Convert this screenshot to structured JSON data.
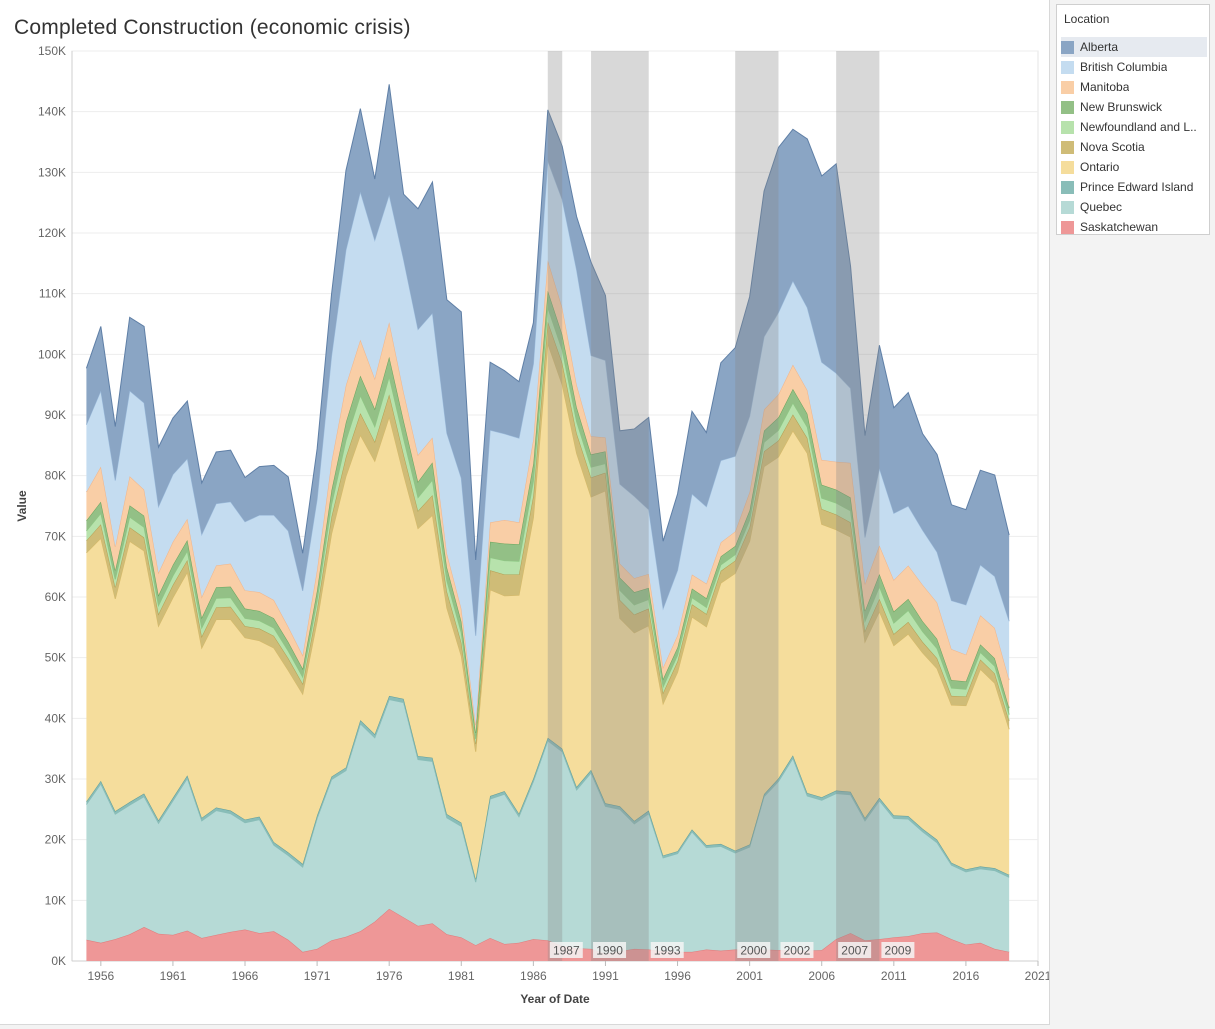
{
  "title": "Completed Construction (economic crisis)",
  "legend": {
    "title": "Location",
    "items": [
      {
        "label": "Alberta",
        "color": "#8aa5c4"
      },
      {
        "label": "British Columbia",
        "color": "#c4dcf0"
      },
      {
        "label": "Manitoba",
        "color": "#f9cea6"
      },
      {
        "label": "New Brunswick",
        "color": "#93c086"
      },
      {
        "label": "Newfoundland and L..",
        "color": "#b7e2ac"
      },
      {
        "label": "Nova Scotia",
        "color": "#cfbc77"
      },
      {
        "label": "Ontario",
        "color": "#f5dd9c"
      },
      {
        "label": "Prince Edward Island",
        "color": "#89bdb8"
      },
      {
        "label": "Quebec",
        "color": "#b6dad6"
      },
      {
        "label": "Saskatchewan",
        "color": "#ee9797"
      }
    ]
  },
  "chart_data": {
    "type": "area",
    "stacked": true,
    "xlabel": "Year of Date",
    "ylabel": "Value",
    "xlim": [
      1954,
      2021
    ],
    "ylim": [
      0,
      150000
    ],
    "x_ticks": [
      1956,
      1961,
      1966,
      1971,
      1976,
      1981,
      1986,
      1991,
      1996,
      2001,
      2006,
      2011,
      2016,
      2021
    ],
    "y_ticks": [
      {
        "value": 0,
        "label": "0K"
      },
      {
        "value": 10000,
        "label": "10K"
      },
      {
        "value": 20000,
        "label": "20K"
      },
      {
        "value": 30000,
        "label": "30K"
      },
      {
        "value": 40000,
        "label": "40K"
      },
      {
        "value": 50000,
        "label": "50K"
      },
      {
        "value": 60000,
        "label": "60K"
      },
      {
        "value": 70000,
        "label": "70K"
      },
      {
        "value": 80000,
        "label": "80K"
      },
      {
        "value": 90000,
        "label": "90K"
      },
      {
        "value": 100000,
        "label": "100K"
      },
      {
        "value": 110000,
        "label": "110K"
      },
      {
        "value": 120000,
        "label": "120K"
      },
      {
        "value": 130000,
        "label": "130K"
      },
      {
        "value": 140000,
        "label": "140K"
      },
      {
        "value": 150000,
        "label": "150K"
      }
    ],
    "grid": true,
    "legend_position": "right",
    "x": [
      1955,
      1956,
      1957,
      1958,
      1959,
      1960,
      1961,
      1962,
      1963,
      1964,
      1965,
      1966,
      1967,
      1968,
      1969,
      1970,
      1971,
      1972,
      1973,
      1974,
      1975,
      1976,
      1977,
      1978,
      1979,
      1980,
      1981,
      1982,
      1983,
      1984,
      1985,
      1986,
      1987,
      1988,
      1989,
      1990,
      1991,
      1992,
      1993,
      1994,
      1995,
      1996,
      1997,
      1998,
      1999,
      2000,
      2001,
      2002,
      2003,
      2004,
      2005,
      2006,
      2007,
      2008,
      2009,
      2010,
      2011,
      2012,
      2013,
      2014,
      2015,
      2016,
      2017,
      2018,
      2019
    ],
    "series": [
      {
        "name": "Saskatchewan",
        "values": [
          3500,
          3000,
          3600,
          4400,
          5600,
          4500,
          4300,
          5000,
          3800,
          4300,
          4800,
          5200,
          4600,
          4900,
          3500,
          1500,
          2000,
          3400,
          4000,
          4900,
          6500,
          8600,
          7200,
          5800,
          6200,
          4400,
          3900,
          2600,
          3800,
          2800,
          3000,
          3600,
          3400,
          2500,
          2100,
          2000,
          1200,
          1600,
          2000,
          1900,
          1600,
          1500,
          1500,
          1900,
          1700,
          1900,
          1800,
          1900,
          1800,
          1800,
          1700,
          1800,
          3600,
          4600,
          3400,
          3600,
          3900,
          4100,
          4600,
          4700,
          3600,
          2700,
          3000,
          2000,
          1500
        ]
      },
      {
        "name": "Quebec",
        "values": [
          22300,
          26200,
          20600,
          21300,
          21500,
          18200,
          22100,
          25100,
          19300,
          20500,
          19500,
          17600,
          18700,
          14200,
          13900,
          14000,
          21500,
          26500,
          27400,
          34200,
          30300,
          34500,
          35400,
          27400,
          26700,
          19200,
          18300,
          10400,
          22900,
          24700,
          20800,
          26000,
          32900,
          32000,
          26100,
          29000,
          24300,
          23400,
          20600,
          22400,
          15400,
          16200,
          19800,
          16800,
          17200,
          15900,
          17000,
          25200,
          27800,
          31600,
          25500,
          24700,
          24000,
          22800,
          19700,
          22800,
          19600,
          19300,
          16700,
          14800,
          12200,
          12000,
          12200,
          12900,
          12300
        ]
      },
      {
        "name": "Prince Edward Island",
        "values": [
          500,
          500,
          500,
          500,
          500,
          500,
          500,
          500,
          500,
          500,
          500,
          500,
          500,
          500,
          500,
          500,
          500,
          500,
          500,
          600,
          600,
          600,
          600,
          600,
          600,
          600,
          600,
          500,
          500,
          500,
          500,
          500,
          500,
          500,
          500,
          500,
          500,
          500,
          500,
          500,
          400,
          400,
          400,
          400,
          400,
          400,
          400,
          400,
          500,
          500,
          500,
          500,
          500,
          500,
          500,
          500,
          500,
          500,
          500,
          500,
          400,
          400,
          400,
          400,
          400
        ]
      },
      {
        "name": "Ontario",
        "values": [
          41000,
          40000,
          35000,
          43000,
          40000,
          32000,
          33000,
          33500,
          28000,
          31000,
          31500,
          30000,
          29000,
          32000,
          30000,
          28000,
          32000,
          40000,
          48000,
          47000,
          45000,
          46000,
          37000,
          37500,
          40000,
          34000,
          27500,
          21000,
          34000,
          32200,
          36000,
          43000,
          65000,
          60000,
          55000,
          45000,
          51500,
          31000,
          31000,
          30500,
          25000,
          29500,
          35000,
          36000,
          43000,
          45700,
          50000,
          54000,
          53000,
          53500,
          56000,
          45000,
          43000,
          42000,
          29000,
          30700,
          28000,
          30000,
          29000,
          28200,
          26000,
          27000,
          32500,
          30500,
          24000
        ]
      },
      {
        "name": "Nova Scotia",
        "values": [
          2000,
          2300,
          1900,
          2300,
          2200,
          2000,
          2100,
          2000,
          1900,
          2000,
          2100,
          1900,
          2000,
          2000,
          2000,
          1700,
          2000,
          2800,
          3200,
          3600,
          3200,
          3700,
          3300,
          2900,
          3300,
          2700,
          2200,
          1300,
          3200,
          3500,
          3400,
          3600,
          3600,
          3600,
          3300,
          3200,
          3000,
          3000,
          3000,
          2800,
          1800,
          1800,
          2100,
          2100,
          2000,
          2100,
          2300,
          2500,
          2700,
          2700,
          2500,
          2500,
          2500,
          2400,
          1800,
          2100,
          1900,
          2000,
          1800,
          1700,
          1500,
          1500,
          1600,
          1600,
          1400
        ]
      },
      {
        "name": "Newfoundland and Labrador",
        "values": [
          1600,
          1800,
          1300,
          1700,
          1700,
          1400,
          1500,
          1500,
          1400,
          1500,
          1500,
          1300,
          1300,
          1300,
          1200,
          1100,
          1400,
          2000,
          2700,
          2900,
          2500,
          2900,
          2600,
          2200,
          2500,
          1800,
          1600,
          800,
          2100,
          2300,
          2200,
          2400,
          2300,
          2100,
          1900,
          1700,
          1500,
          1600,
          1600,
          1500,
          1000,
          1000,
          1100,
          1100,
          1000,
          1000,
          1200,
          1500,
          1700,
          1900,
          1800,
          1800,
          1900,
          1900,
          1600,
          2000,
          1800,
          1900,
          1700,
          1600,
          1300,
          1200,
          1200,
          1200,
          1000
        ]
      },
      {
        "name": "New Brunswick",
        "values": [
          1700,
          1900,
          1500,
          1900,
          1900,
          1700,
          1800,
          1800,
          1700,
          1800,
          1800,
          1600,
          1600,
          1600,
          1500,
          1400,
          1700,
          2400,
          3000,
          3300,
          2900,
          3300,
          3000,
          2600,
          2900,
          2200,
          1900,
          1000,
          2600,
          2800,
          2800,
          2900,
          2800,
          2600,
          2400,
          2100,
          2000,
          2100,
          2100,
          1900,
          1300,
          1300,
          1500,
          1500,
          1400,
          1400,
          1600,
          1900,
          2100,
          2300,
          2200,
          2200,
          2200,
          2200,
          1700,
          2100,
          1900,
          1900,
          1700,
          1600,
          1300,
          1300,
          1300,
          1300,
          1100
        ]
      },
      {
        "name": "Manitoba",
        "values": [
          4700,
          5800,
          3900,
          4800,
          4300,
          3700,
          3800,
          3500,
          3400,
          3600,
          3800,
          3000,
          3100,
          3000,
          2500,
          2200,
          3400,
          4700,
          6100,
          5900,
          5000,
          5700,
          4700,
          4400,
          4100,
          2300,
          2100,
          1300,
          3200,
          3900,
          3600,
          4000,
          5000,
          4400,
          3700,
          3000,
          2300,
          2300,
          2300,
          2300,
          1900,
          2000,
          2300,
          2400,
          2300,
          2400,
          3000,
          3500,
          3800,
          4000,
          3900,
          4100,
          4600,
          5700,
          4400,
          4700,
          5200,
          5500,
          6000,
          6000,
          5100,
          4400,
          4800,
          5000,
          4600
        ]
      },
      {
        "name": "British Columbia",
        "values": [
          11100,
          12500,
          10900,
          14100,
          14300,
          10900,
          11100,
          9900,
          10300,
          10200,
          10200,
          11300,
          12700,
          14000,
          15800,
          10600,
          11600,
          17400,
          22300,
          24400,
          22800,
          21000,
          21800,
          20700,
          20500,
          19800,
          21500,
          14700,
          15200,
          14200,
          13900,
          12400,
          16400,
          17800,
          18900,
          13300,
          12700,
          13100,
          13500,
          10600,
          9700,
          10700,
          13300,
          12700,
          13500,
          12400,
          12500,
          12000,
          13500,
          13800,
          13600,
          16100,
          14600,
          12300,
          7700,
          12700,
          11000,
          9800,
          9000,
          8300,
          8000,
          8200,
          8300,
          8500,
          9700
        ]
      },
      {
        "name": "Alberta",
        "values": [
          9300,
          10600,
          8900,
          12100,
          12600,
          9800,
          9300,
          9500,
          8500,
          8500,
          8500,
          7300,
          8000,
          8200,
          8900,
          6200,
          8300,
          10200,
          13100,
          13700,
          10100,
          18200,
          10800,
          19900,
          21600,
          22000,
          27400,
          12500,
          11200,
          10400,
          9300,
          6800,
          8400,
          8800,
          8800,
          15400,
          10700,
          8800,
          11100,
          15200,
          11100,
          12600,
          13600,
          12200,
          16100,
          17900,
          19700,
          24000,
          27200,
          25000,
          27800,
          30700,
          34500,
          20100,
          16800,
          20300,
          17400,
          18700,
          15900,
          16100,
          15800,
          15700,
          15600,
          16700,
          14200
        ]
      }
    ],
    "crisis_periods": [
      {
        "from": 1987,
        "to": 1988,
        "label": "1987"
      },
      {
        "from": 1990,
        "to": 1994,
        "label": "1990"
      },
      {
        "from": 1994,
        "to": 1994,
        "label": "1993"
      },
      {
        "from": 2000,
        "to": 2003,
        "label": "2000"
      },
      {
        "from": 2003,
        "to": 2003,
        "label": "2002"
      },
      {
        "from": 2007,
        "to": 2010,
        "label": "2007"
      },
      {
        "from": 2010,
        "to": 2010,
        "label": "2009"
      }
    ]
  }
}
